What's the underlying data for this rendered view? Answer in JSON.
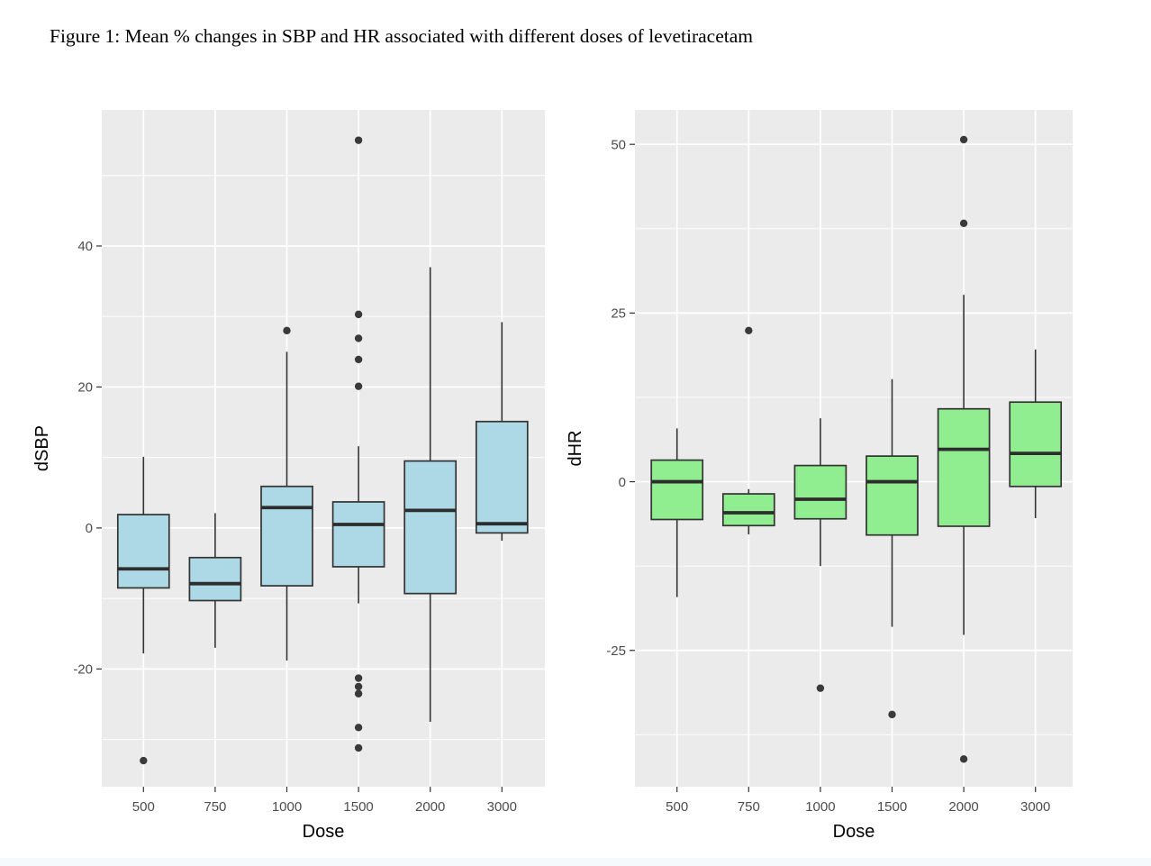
{
  "figure": {
    "title": "Figure 1: Mean % changes in SBP and HR associated with different doses of levetiracetam"
  },
  "colors": {
    "panel_background": "#EBEBEB",
    "gridline": "#FFFFFF",
    "axis_text": "#4D4D4D",
    "box_outline": "#333333",
    "outlier": "#3A3A3A",
    "sbp_box_fill": "#ADD8E6",
    "hr_box_fill": "#90EE90"
  },
  "chart_data": [
    {
      "type": "boxplot",
      "ylabel": "dSBP",
      "xlabel": "Dose",
      "categories": [
        "500",
        "750",
        "1000",
        "1500",
        "2000",
        "3000"
      ],
      "ylim": [
        -36.7,
        59.3
      ],
      "y_major_ticks": [
        40,
        20,
        0,
        -20
      ],
      "y_minor_ticks": [
        50,
        30,
        10,
        -10,
        -30
      ],
      "grid": true,
      "legend": "none",
      "box_fill": "#ADD8E6",
      "boxes": [
        {
          "category": "500",
          "whisker_low": -17.8,
          "q1": -8.5,
          "median": -5.8,
          "q3": 1.9,
          "whisker_high": 10.1,
          "outliers": [
            -33
          ]
        },
        {
          "category": "750",
          "whisker_low": -17.0,
          "q1": -10.3,
          "median": -7.9,
          "q3": -4.2,
          "whisker_high": 2.1,
          "outliers": []
        },
        {
          "category": "1000",
          "whisker_low": -18.8,
          "q1": -8.2,
          "median": 2.9,
          "q3": 5.9,
          "whisker_high": 25.0,
          "outliers": [
            28
          ]
        },
        {
          "category": "1500",
          "whisker_low": -10.7,
          "q1": -5.5,
          "median": 0.5,
          "q3": 3.7,
          "whisker_high": 11.6,
          "outliers": [
            55,
            30.3,
            26.9,
            23.9,
            20.1,
            -21.3,
            -22.5,
            -23.5,
            -28.3,
            -31.2
          ]
        },
        {
          "category": "2000",
          "whisker_low": -27.5,
          "q1": -9.3,
          "median": 2.5,
          "q3": 9.5,
          "whisker_high": 37.0,
          "outliers": []
        },
        {
          "category": "3000",
          "whisker_low": -1.8,
          "q1": -0.7,
          "median": 0.6,
          "q3": 15.1,
          "whisker_high": 29.2,
          "outliers": []
        }
      ]
    },
    {
      "type": "boxplot",
      "ylabel": "dHR",
      "xlabel": "Dose",
      "categories": [
        "500",
        "750",
        "1000",
        "1500",
        "2000",
        "3000"
      ],
      "ylim": [
        -45.2,
        55.1
      ],
      "y_major_ticks": [
        50,
        25,
        0,
        -25
      ],
      "y_minor_ticks": [
        37.5,
        12.5,
        -12.5,
        -37.5
      ],
      "grid": true,
      "legend": "none",
      "box_fill": "#90EE90",
      "boxes": [
        {
          "category": "500",
          "whisker_low": -17.1,
          "q1": -5.6,
          "median": 0.0,
          "q3": 3.2,
          "whisker_high": 7.9,
          "outliers": []
        },
        {
          "category": "750",
          "whisker_low": -7.8,
          "q1": -6.5,
          "median": -4.6,
          "q3": -1.8,
          "whisker_high": -1.1,
          "outliers": [
            22.4
          ]
        },
        {
          "category": "1000",
          "whisker_low": -12.5,
          "q1": -5.5,
          "median": -2.6,
          "q3": 2.4,
          "whisker_high": 9.4,
          "outliers": [
            -30.6
          ]
        },
        {
          "category": "1500",
          "whisker_low": -21.5,
          "q1": -7.9,
          "median": 0.0,
          "q3": 3.8,
          "whisker_high": 15.2,
          "outliers": [
            -34.5
          ]
        },
        {
          "category": "2000",
          "whisker_low": -22.7,
          "q1": -6.6,
          "median": 4.8,
          "q3": 10.8,
          "whisker_high": 27.7,
          "outliers": [
            50.7,
            38.3,
            -41.1
          ]
        },
        {
          "category": "3000",
          "whisker_low": -5.4,
          "q1": -0.7,
          "median": 4.2,
          "q3": 11.8,
          "whisker_high": 19.6,
          "outliers": []
        }
      ]
    }
  ]
}
